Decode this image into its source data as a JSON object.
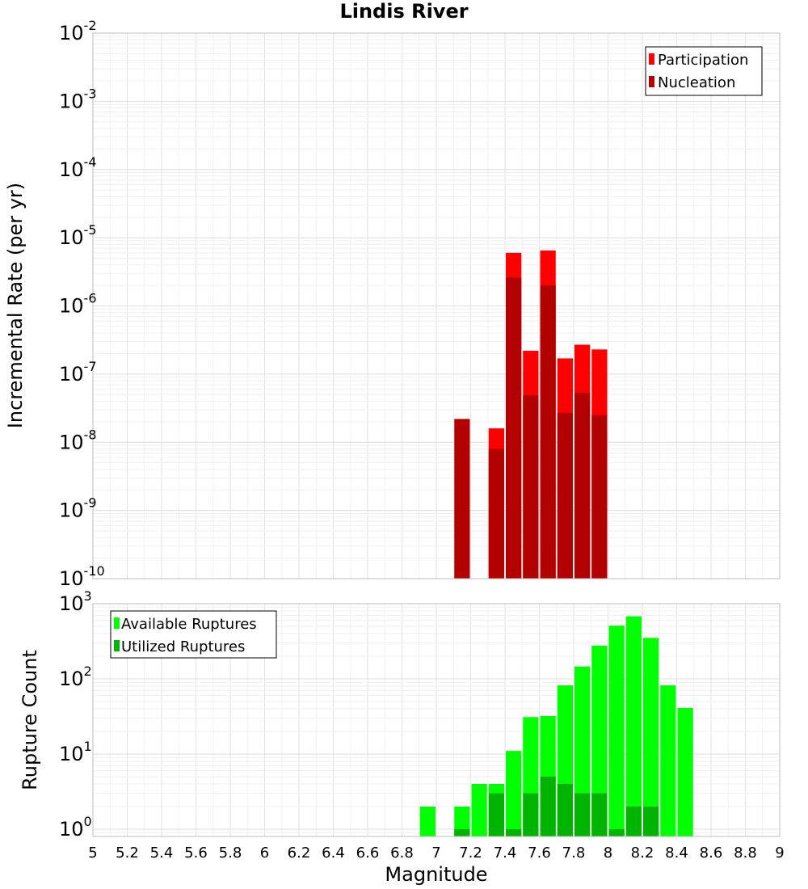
{
  "chart_data": [
    {
      "type": "bar",
      "title": "Lindis River",
      "xlabel": "",
      "ylabel": "Incremental Rate (per yr)",
      "yscale": "log",
      "ylim": [
        1e-10,
        0.01
      ],
      "ytick_exponents": [
        "-10",
        "-9",
        "-8",
        "-7",
        "-6",
        "-5",
        "-4",
        "-3",
        "-2"
      ],
      "xlim": [
        5,
        9
      ],
      "bar_width": 0.1,
      "grid": true,
      "legend_position": "top-right",
      "series": [
        {
          "name": "Participation",
          "color": "#ff0000",
          "x": [
            7.35,
            7.45,
            7.55,
            7.65,
            7.75,
            7.85,
            7.95
          ],
          "values": [
            1.6e-08,
            6e-06,
            2.2e-07,
            6.5e-06,
            1.7e-07,
            2.7e-07,
            2.3e-07
          ]
        },
        {
          "name": "Nucleation",
          "color": "#b30000",
          "x": [
            7.15,
            7.35,
            7.45,
            7.55,
            7.65,
            7.75,
            7.85,
            7.95
          ],
          "values": [
            2.2e-08,
            8e-09,
            2.6e-06,
            4.9e-08,
            2e-06,
            2.7e-08,
            5.3e-08,
            2.5e-08
          ]
        }
      ]
    },
    {
      "type": "bar",
      "title": "",
      "xlabel": "Magnitude",
      "ylabel": "Rupture Count",
      "yscale": "log",
      "ylim": [
        0.8,
        1000
      ],
      "ytick_exponents": [
        "0",
        "1",
        "2",
        "3"
      ],
      "xlim": [
        5,
        9
      ],
      "xticks": [
        "5",
        "5.2",
        "5.4",
        "5.6",
        "5.8",
        "6",
        "6.2",
        "6.4",
        "6.6",
        "6.8",
        "7",
        "7.2",
        "7.4",
        "7.6",
        "7.8",
        "8",
        "8.2",
        "8.4",
        "8.6",
        "8.8",
        "9"
      ],
      "bar_width": 0.1,
      "grid": true,
      "legend_position": "top-left",
      "series": [
        {
          "name": "Available Ruptures",
          "color": "#00ff00",
          "x": [
            6.95,
            7.15,
            7.25,
            7.35,
            7.45,
            7.55,
            7.65,
            7.75,
            7.85,
            7.95,
            8.05,
            8.15,
            8.25,
            8.35,
            8.45
          ],
          "values": [
            2,
            2,
            4,
            4,
            11,
            31,
            32,
            82,
            146,
            277,
            511,
            679,
            351,
            82,
            41
          ]
        },
        {
          "name": "Utilized Ruptures",
          "color": "#00b300",
          "x": [
            7.15,
            7.35,
            7.45,
            7.55,
            7.65,
            7.75,
            7.85,
            7.95,
            8.05,
            8.15,
            8.25
          ],
          "values": [
            1,
            3,
            1,
            3,
            5,
            4,
            3,
            3,
            1,
            2,
            2
          ]
        }
      ]
    }
  ]
}
